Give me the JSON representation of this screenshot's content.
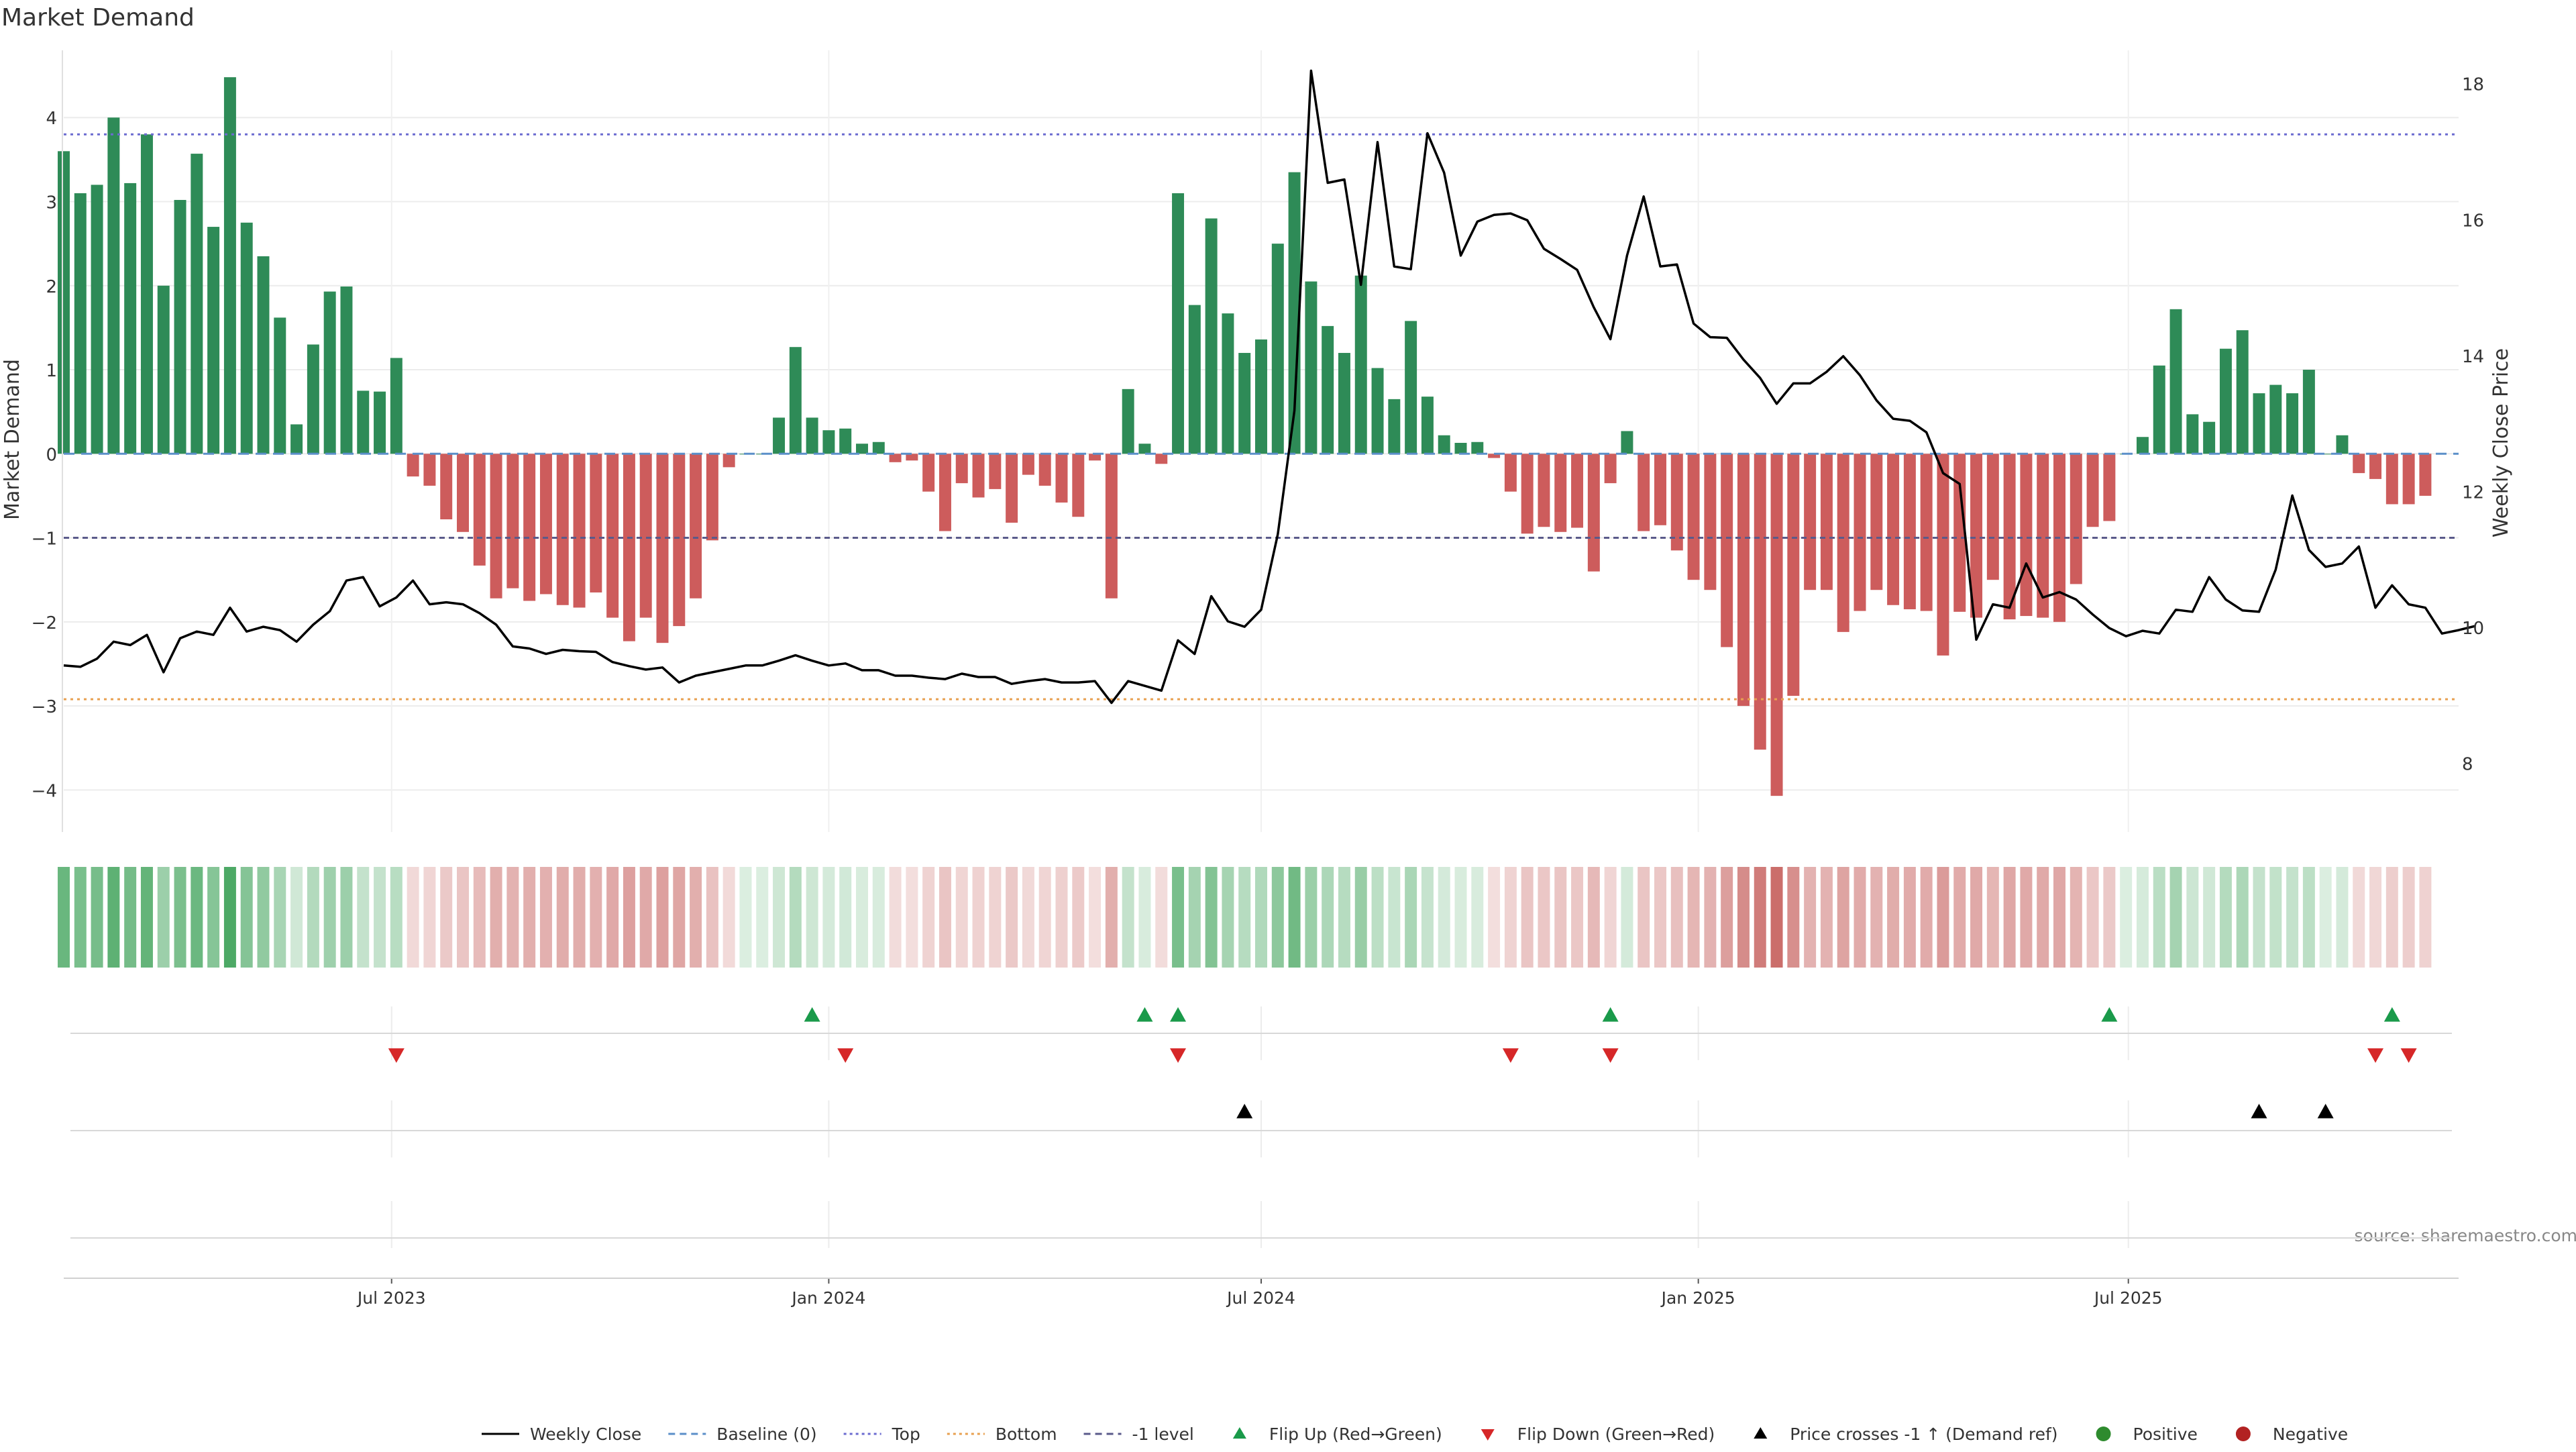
{
  "title": "Market Demand",
  "source_note": "source: sharemaestro.com",
  "chart_data": {
    "type": "bar",
    "title": "Market Demand",
    "ylabel": "Market Demand",
    "y2label": "Weekly Close Price",
    "ylim": [
      -4.5,
      4.8
    ],
    "y2lim": [
      7.0,
      18.5
    ],
    "y_ticks": [
      -4,
      -3,
      -2,
      -1,
      0,
      1,
      2,
      3,
      4
    ],
    "y2_ticks": [
      8,
      10,
      12,
      14,
      16,
      18
    ],
    "x_start": "2023-02-13",
    "x_end": "2025-11-17",
    "x_ticks": [
      {
        "date": "2023-07-01",
        "label": "Jul 2023"
      },
      {
        "date": "2024-01-01",
        "label": "Jan 2024"
      },
      {
        "date": "2024-07-01",
        "label": "Jul 2024"
      },
      {
        "date": "2025-01-01",
        "label": "Jan 2025"
      },
      {
        "date": "2025-07-01",
        "label": "Jul 2025"
      }
    ],
    "reference_lines": {
      "top": 3.8,
      "bottom": -2.92,
      "minus_one": -1.0,
      "baseline": 0
    },
    "grid": true,
    "colors": {
      "positive_bar": "#2e8b57",
      "negative_bar": "#cd5c5c",
      "price_line": "#000000",
      "top_line": "#6b6bd0",
      "bottom_line": "#e8a050",
      "minus_one_line": "#5a5a8a",
      "baseline": "#5b8fc9",
      "flip_up": "#1a9a4a",
      "flip_down": "#d62728",
      "cross_marker": "#000000",
      "strip_positive": "#3aa055",
      "strip_negative": "#c0504d"
    },
    "series": [
      {
        "name": "Market Demand",
        "start_date": "2023-02-13",
        "weekly": true,
        "values": [
          3.6,
          3.1,
          3.2,
          4.0,
          3.22,
          3.8,
          2.0,
          3.02,
          3.57,
          2.7,
          4.48,
          2.75,
          2.35,
          1.62,
          0.35,
          1.3,
          1.93,
          1.99,
          0.75,
          0.74,
          1.14,
          -0.27,
          -0.38,
          -0.78,
          -0.93,
          -1.33,
          -1.72,
          -1.6,
          -1.75,
          -1.67,
          -1.8,
          -1.83,
          -1.65,
          -1.95,
          -2.23,
          -1.95,
          -2.25,
          -2.05,
          -1.72,
          -1.03,
          -0.16,
          0.0,
          0.0,
          0.43,
          1.27,
          0.43,
          0.28,
          0.3,
          0.12,
          0.14,
          -0.1,
          -0.08,
          -0.45,
          -0.92,
          -0.35,
          -0.52,
          -0.42,
          -0.82,
          -0.25,
          -0.38,
          -0.58,
          -0.75,
          -0.08,
          -1.72,
          0.77,
          0.12,
          -0.12,
          3.1,
          1.77,
          2.8,
          1.67,
          1.2,
          1.36,
          2.5,
          3.35,
          2.05,
          1.52,
          1.2,
          2.12,
          1.02,
          0.65,
          1.58,
          0.68,
          0.22,
          0.13,
          0.14,
          -0.05,
          -0.45,
          -0.95,
          -0.87,
          -0.93,
          -0.88,
          -1.4,
          -0.35,
          0.27,
          -0.92,
          -0.85,
          -1.15,
          -1.5,
          -1.62,
          -2.3,
          -3.0,
          -3.52,
          -4.07,
          -2.88,
          -1.62,
          -1.62,
          -2.12,
          -1.87,
          -1.62,
          -1.8,
          -1.85,
          -1.87,
          -2.4,
          -1.88,
          -1.95,
          -1.5,
          -1.97,
          -1.93,
          -1.95,
          -2.0,
          -1.55,
          -0.87,
          -0.8,
          0.0,
          0.2,
          1.05,
          1.72,
          0.47,
          0.38,
          1.25,
          1.47,
          0.72,
          0.82,
          0.72,
          1.0,
          0.0,
          0.22,
          -0.23,
          -0.3,
          -0.6,
          -0.6,
          -0.5
        ]
      },
      {
        "name": "Weekly Close",
        "start_date": "2023-02-13",
        "weekly": true,
        "values": [
          9.45,
          9.43,
          9.55,
          9.8,
          9.75,
          9.9,
          9.35,
          9.85,
          9.95,
          9.9,
          10.3,
          9.95,
          10.02,
          9.97,
          9.8,
          10.05,
          10.25,
          10.7,
          10.75,
          10.32,
          10.45,
          10.7,
          10.35,
          10.38,
          10.35,
          10.22,
          10.05,
          9.73,
          9.7,
          9.62,
          9.68,
          9.66,
          9.65,
          9.5,
          9.44,
          9.39,
          9.42,
          9.2,
          9.3,
          9.35,
          9.4,
          9.45,
          9.45,
          9.52,
          9.6,
          9.52,
          9.45,
          9.48,
          9.38,
          9.38,
          9.3,
          9.3,
          9.27,
          9.25,
          9.33,
          9.28,
          9.28,
          9.18,
          9.22,
          9.25,
          9.2,
          9.2,
          9.22,
          8.9,
          9.22,
          9.15,
          9.08,
          9.82,
          9.62,
          10.47,
          10.1,
          10.02,
          10.27,
          11.38,
          13.2,
          18.2,
          16.55,
          16.6,
          15.05,
          17.15,
          15.32,
          15.28,
          17.28,
          16.7,
          15.48,
          15.98,
          16.08,
          16.1,
          16.0,
          15.58,
          15.43,
          15.27,
          14.72,
          14.25,
          15.48,
          16.35,
          15.32,
          15.35,
          14.48,
          14.28,
          14.27,
          13.95,
          13.68,
          13.3,
          13.6,
          13.6,
          13.77,
          14.0,
          13.72,
          13.35,
          13.08,
          13.05,
          12.88,
          12.28,
          12.12,
          9.83,
          10.35,
          10.3,
          10.95,
          10.45,
          10.53,
          10.42,
          10.2,
          10.0,
          9.88,
          9.96,
          9.92,
          10.27,
          10.24,
          10.75,
          10.42,
          10.26,
          10.24,
          10.86,
          11.95,
          11.15,
          10.9,
          10.95,
          11.2,
          10.3,
          10.63,
          10.35,
          10.3,
          9.92,
          9.97,
          10.03
        ]
      }
    ],
    "flip_up_dates": [
      "2023-12-25",
      "2024-05-13",
      "2024-05-27",
      "2024-11-25",
      "2025-06-23",
      "2025-10-20"
    ],
    "flip_down_dates": [
      "2023-07-03",
      "2024-01-08",
      "2024-05-27",
      "2024-10-14",
      "2024-11-25",
      "2025-10-13",
      "2025-10-27"
    ],
    "price_cross_dates": [
      "2024-06-24",
      "2025-08-25",
      "2025-09-22"
    ],
    "legend": {
      "position": "bottom",
      "items": [
        {
          "label": "Weekly Close",
          "kind": "line",
          "color": "#000000"
        },
        {
          "label": "Baseline (0)",
          "kind": "dash",
          "color": "#5b8fc9"
        },
        {
          "label": "Top",
          "kind": "dot",
          "color": "#6b6bd0"
        },
        {
          "label": "Bottom",
          "kind": "dot",
          "color": "#e8a050"
        },
        {
          "label": "-1 level",
          "kind": "dash",
          "color": "#5a5a8a"
        },
        {
          "label": "Flip Up (Red→Green)",
          "kind": "tri-up",
          "color": "#1a9a4a"
        },
        {
          "label": "Flip Down (Green→Red)",
          "kind": "tri-down",
          "color": "#d62728"
        },
        {
          "label": "Price crosses -1 ↑ (Demand ref)",
          "kind": "tri-up",
          "color": "#000000"
        },
        {
          "label": "Positive",
          "kind": "circle",
          "color": "#2e8b2e"
        },
        {
          "label": "Negative",
          "kind": "circle",
          "color": "#b22222"
        }
      ]
    }
  }
}
